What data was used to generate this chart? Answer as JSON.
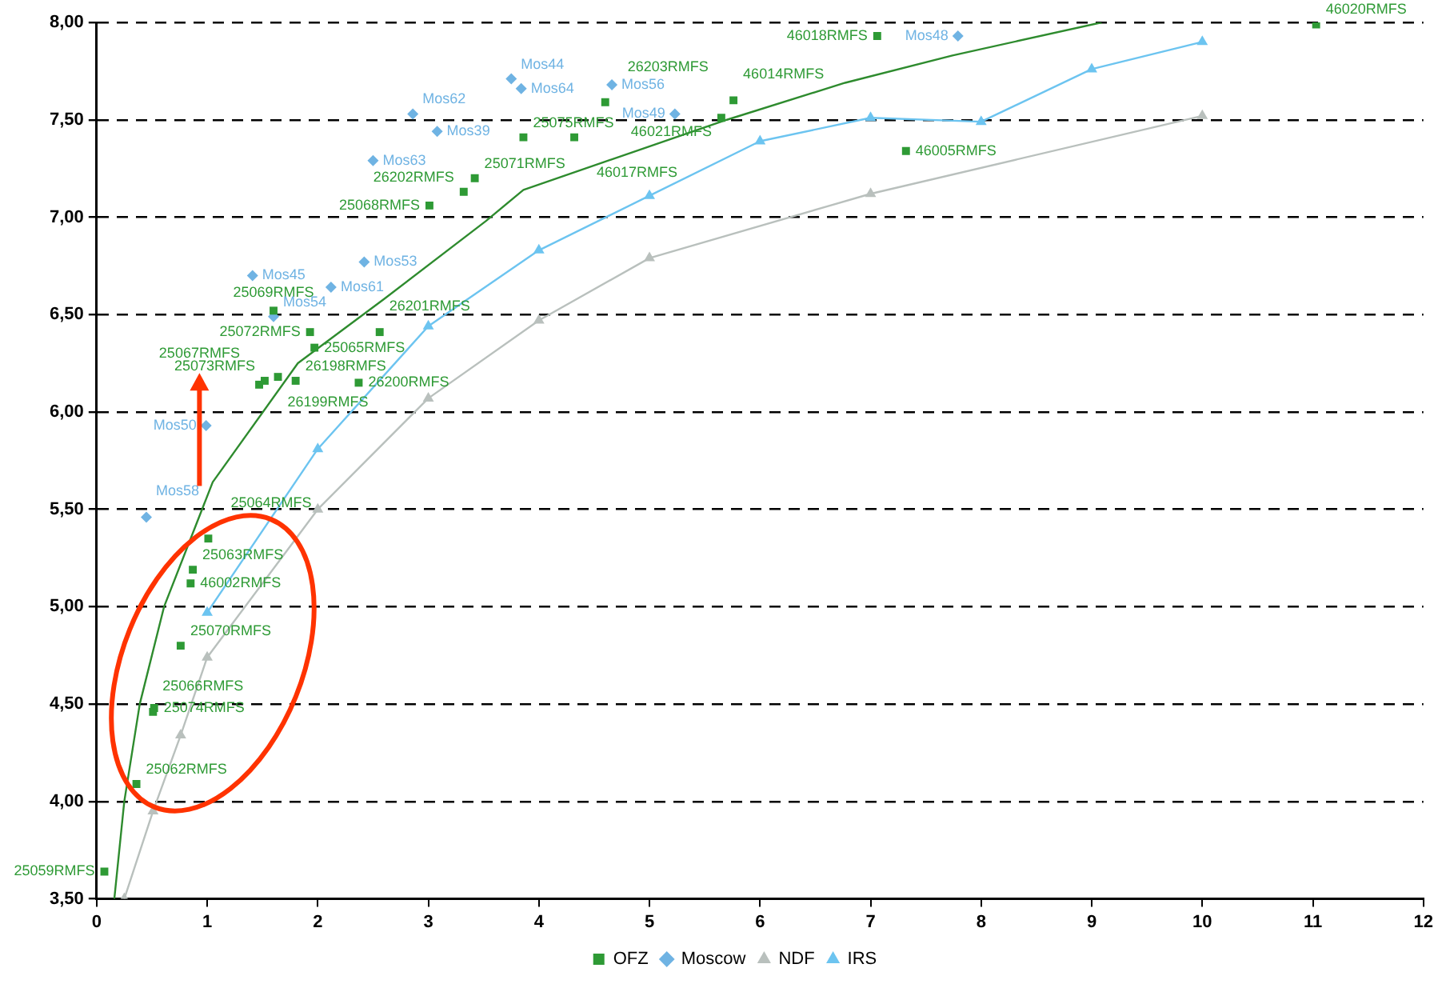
{
  "chart_data": {
    "type": "scatter",
    "xlim": [
      0,
      12
    ],
    "xticks": [
      0,
      1,
      2,
      3,
      4,
      5,
      6,
      7,
      8,
      9,
      10,
      11,
      12
    ],
    "ylim": [
      3.5,
      8
    ],
    "yticks": [
      {
        "value": 3.5,
        "label": "3,50"
      },
      {
        "value": 4,
        "label": "4,00"
      },
      {
        "value": 4.5,
        "label": "4,50"
      },
      {
        "value": 5,
        "label": "5,00"
      },
      {
        "value": 5.5,
        "label": "5,50"
      },
      {
        "value": 6,
        "label": "6,00"
      },
      {
        "value": 6.5,
        "label": "6,50"
      },
      {
        "value": 7,
        "label": "7,00"
      },
      {
        "value": 7.5,
        "label": "7,50"
      },
      {
        "value": 8,
        "label": "8,00"
      }
    ],
    "grid": "y",
    "legend": "bottom",
    "annotations": [
      "25067RMFS",
      {
        "text": "25059RMFS",
        "x": 0.07,
        "y": 3.64
      },
      {
        "text": "25062RMFS",
        "x": 0.36,
        "y": 4.09
      },
      {
        "text": "25066RMFS",
        "x": 0.51,
        "y": 4.46
      },
      {
        "text": "25074RMFS",
        "x": 0.52,
        "y": 4.48
      },
      {
        "text": "25070RMFS",
        "x": 0.76,
        "y": 4.8
      },
      {
        "text": "46002RMFS",
        "x": 0.85,
        "y": 5.12
      },
      {
        "text": "25063RMFS",
        "x": 0.87,
        "y": 5.19
      },
      {
        "text": "25064RMFS",
        "x": 1.01,
        "y": 5.35
      },
      {
        "text": "25069RMFS",
        "x": 1.6,
        "y": 6.52
      },
      {
        "text": "25072RMFS",
        "x": 1.93,
        "y": 6.41
      },
      {
        "text": "25065RMFS",
        "x": 1.97,
        "y": 6.33
      },
      {
        "text": "25073RMFS",
        "x": 1.52,
        "y": 6.16
      },
      {
        "text": "26199RMFS",
        "x": 1.64,
        "y": 6.18
      },
      {
        "text": "26198RMFS",
        "x": 1.8,
        "y": 6.16
      },
      {
        "text": "26200RMFS",
        "x": 2.37,
        "y": 6.15
      },
      {
        "text": "26201RMFS",
        "x": 2.56,
        "y": 6.41
      },
      {
        "text": "25068RMFS",
        "x": 3.01,
        "y": 7.06
      },
      {
        "text": "26202RMFS",
        "x": 3.32,
        "y": 7.13
      },
      {
        "text": "25071RMFS",
        "x": 3.42,
        "y": 7.2
      },
      {
        "text": "25075RMFS",
        "x": 3.86,
        "y": 7.41
      },
      {
        "text": "46017RMFS",
        "x": 4.32,
        "y": 7.41
      },
      {
        "text": "26203RMFS",
        "x": 4.6,
        "y": 7.59
      },
      {
        "text": "46014RMFS",
        "x": 5.76,
        "y": 7.6
      },
      {
        "text": "46021RMFS",
        "x": 5.65,
        "y": 7.51
      },
      {
        "text": "46018RMFS",
        "x": 7.06,
        "y": 7.93
      },
      {
        "text": "46005RMFS",
        "x": 7.32,
        "y": 7.34
      },
      {
        "text": "46020RMFS",
        "x": 11.03,
        "y": 7.99
      },
      {
        "text": "Mos58",
        "x": 0.45,
        "y": 5.46
      },
      {
        "text": "Mos50",
        "x": 0.99,
        "y": 5.93
      },
      {
        "text": "Mos45",
        "x": 1.41,
        "y": 6.7
      },
      {
        "text": "Mos54",
        "x": 1.6,
        "y": 6.49
      },
      {
        "text": "Mos61",
        "x": 2.12,
        "y": 6.64
      },
      {
        "text": "Mos53",
        "x": 2.42,
        "y": 6.77
      },
      {
        "text": "Mos63",
        "x": 2.5,
        "y": 7.29
      },
      {
        "text": "Mos62",
        "x": 2.86,
        "y": 7.53
      },
      {
        "text": "Mos39",
        "x": 3.08,
        "y": 7.44
      },
      {
        "text": "Mos44",
        "x": 3.75,
        "y": 7.71
      },
      {
        "text": "Mos64",
        "x": 3.84,
        "y": 7.66
      },
      {
        "text": "Mos56",
        "x": 4.66,
        "y": 7.68
      },
      {
        "text": "Mos49",
        "x": 5.23,
        "y": 7.53
      },
      {
        "text": "Mos48",
        "x": 7.79,
        "y": 7.93
      }
    ],
    "series": [
      {
        "name": "OFZ",
        "marker": "square",
        "color": "#2e9a35",
        "x": [
          0.07,
          0.36,
          0.51,
          0.52,
          0.76,
          0.85,
          0.87,
          1.01,
          1.6,
          1.93,
          1.97,
          1.47,
          1.52,
          1.64,
          1.8,
          2.37,
          2.56,
          3.01,
          3.32,
          3.42,
          3.86,
          4.32,
          4.6,
          5.76,
          5.65,
          7.06,
          7.32,
          11.03
        ],
        "values": [
          3.64,
          4.09,
          4.46,
          4.48,
          4.8,
          5.12,
          5.19,
          5.35,
          6.52,
          6.41,
          6.33,
          6.14,
          6.16,
          6.18,
          6.16,
          6.15,
          6.41,
          7.06,
          7.13,
          7.2,
          7.41,
          7.41,
          7.59,
          7.6,
          7.51,
          7.93,
          7.34,
          7.99
        ]
      },
      {
        "name": "Moscow",
        "marker": "diamond",
        "color": "#6fb3e3",
        "x": [
          0.45,
          0.99,
          1.41,
          1.6,
          2.12,
          2.42,
          2.5,
          2.86,
          3.08,
          3.75,
          3.84,
          4.66,
          5.23,
          7.79
        ],
        "values": [
          5.46,
          5.93,
          6.7,
          6.49,
          6.64,
          6.77,
          7.29,
          7.53,
          7.44,
          7.71,
          7.66,
          7.68,
          7.53,
          7.93
        ]
      },
      {
        "name": "NDF",
        "type": "line",
        "marker": "triangle",
        "color": "#b9c0bd",
        "x": [
          0.25,
          0.51,
          0.76,
          1,
          2,
          3,
          4,
          5,
          7,
          10
        ],
        "values": [
          3.5,
          3.95,
          4.34,
          4.74,
          5.5,
          6.07,
          6.47,
          6.79,
          7.12,
          7.52
        ]
      },
      {
        "name": "IRS",
        "type": "line",
        "marker": "triangle",
        "color": "#6cc4f0",
        "x": [
          1,
          2,
          3,
          4,
          5,
          6,
          7,
          8,
          9,
          10
        ],
        "values": [
          4.97,
          5.81,
          6.44,
          6.83,
          7.11,
          7.39,
          7.51,
          7.49,
          7.76,
          7.9
        ]
      },
      {
        "type": "line",
        "marker": "none",
        "color": "#2e8b2e",
        "x": [
          0.16,
          0.25,
          0.39,
          0.61,
          1.05,
          1.82,
          2.6,
          3.52,
          3.86,
          4.83,
          5.7,
          6.77,
          7.74,
          9.09
        ],
        "values": [
          3.5,
          4.0,
          4.5,
          5.0,
          5.64,
          6.25,
          6.58,
          6.98,
          7.14,
          7.33,
          7.5,
          7.69,
          7.83,
          8.0
        ]
      }
    ]
  }
}
